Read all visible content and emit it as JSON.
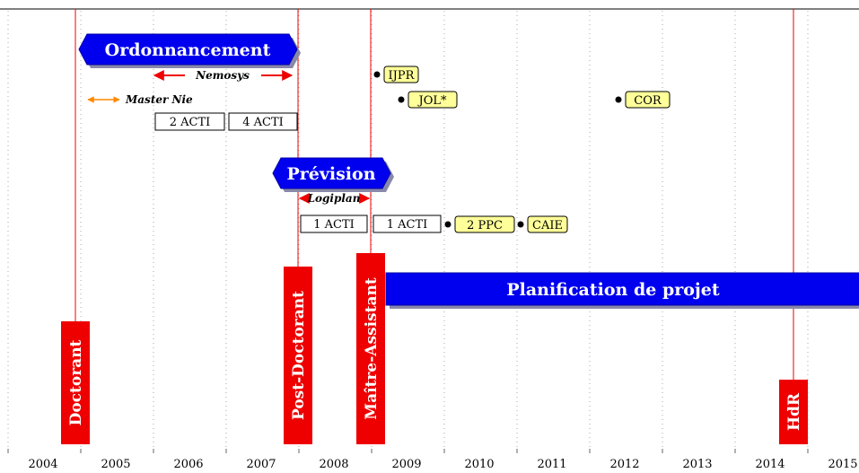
{
  "years": [
    2004,
    2005,
    2006,
    2007,
    2008,
    2009,
    2010,
    2011,
    2012,
    2013,
    2014,
    2015
  ],
  "roles": [
    "Doctorant",
    "Post-Doctorant",
    "Maître-Assistant",
    "HdR"
  ],
  "banners": [
    "Ordonnancement",
    "Prévision",
    "Planification de projet"
  ],
  "projects": [
    "Nemosys",
    "Master Nie",
    "Logiplan"
  ],
  "acti_boxes": [
    "2 ACTI",
    "4 ACTI",
    "1 ACTI",
    "1 ACTI"
  ],
  "publications": [
    "IJPR",
    "JOL*",
    "COR",
    "2 PPC",
    "CAIE"
  ]
}
